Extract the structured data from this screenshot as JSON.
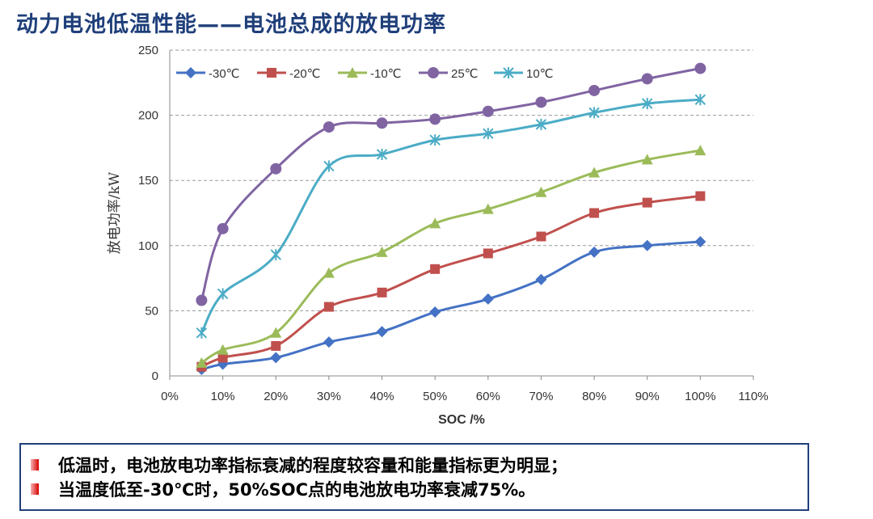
{
  "page_title": "动力电池低温性能——电池总成的放电功率",
  "notes": [
    "低温时，电池放电功率指标衰减的程度较容量和能量指标更为明显；",
    "当温度低至-30℃时，50%SOC点的电池放电功率衰减75%。"
  ],
  "chart_data": {
    "type": "line",
    "title": "",
    "xlabel": "SOC /%",
    "ylabel": "放电功率/kW",
    "xlim": [
      0,
      110
    ],
    "ylim": [
      0,
      250
    ],
    "x_ticks": [
      "0%",
      "10%",
      "20%",
      "30%",
      "40%",
      "50%",
      "60%",
      "70%",
      "80%",
      "90%",
      "100%",
      "110%"
    ],
    "y_ticks": [
      "0",
      "50",
      "100",
      "150",
      "200",
      "250"
    ],
    "grid": "horizontal dashed",
    "legend_position": "top-left",
    "x": [
      6,
      10,
      20,
      30,
      40,
      50,
      60,
      70,
      80,
      90,
      100
    ],
    "series": [
      {
        "name": "-30℃",
        "color": "#4472c4",
        "marker": "diamond",
        "values": [
          5,
          9,
          14,
          26,
          34,
          49,
          59,
          74,
          95,
          100,
          103
        ]
      },
      {
        "name": "-20℃",
        "color": "#c0504d",
        "marker": "square",
        "values": [
          7,
          14,
          23,
          53,
          64,
          82,
          94,
          107,
          125,
          133,
          138
        ]
      },
      {
        "name": "-10℃",
        "color": "#9bbb59",
        "marker": "triangle",
        "values": [
          10,
          20,
          33,
          79,
          95,
          117,
          128,
          141,
          156,
          166,
          173
        ]
      },
      {
        "name": "25℃",
        "color": "#8064a2",
        "marker": "circle",
        "values": [
          58,
          113,
          159,
          191,
          194,
          197,
          203,
          210,
          219,
          228,
          236
        ]
      },
      {
        "name": "10℃",
        "color": "#4bacc6",
        "marker": "star",
        "values": [
          33,
          63,
          93,
          161,
          170,
          181,
          186,
          193,
          202,
          209,
          212
        ]
      }
    ]
  }
}
